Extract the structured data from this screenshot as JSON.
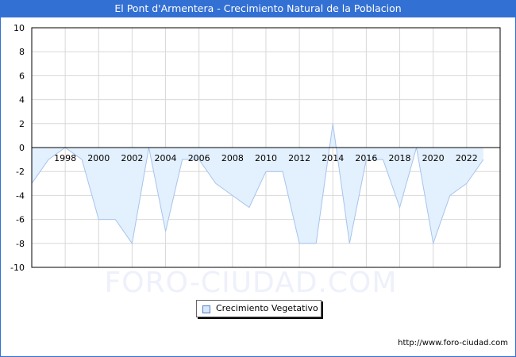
{
  "header": {
    "title": "El Pont d'Armentera - Crecimiento Natural de la Poblacion"
  },
  "legend": {
    "label": "Crecimiento Vegetativo"
  },
  "watermark": "FORO-CIUDAD.COM",
  "source": "http://www.foro-ciudad.com",
  "colors": {
    "title_bg": "#3370d4",
    "area_fill": "#e3f0fd",
    "line": "#a6c4ec",
    "grid": "#d8d8d8"
  },
  "chart_data": {
    "type": "area",
    "title": "El Pont d'Armentera - Crecimiento Natural de la Poblacion",
    "xlabel": "",
    "ylabel": "",
    "ylim": [
      -10,
      10
    ],
    "yticks": [
      10,
      8,
      6,
      4,
      2,
      0,
      -2,
      -4,
      -6,
      -8,
      -10
    ],
    "xtick_labels": [
      "1998",
      "2000",
      "2002",
      "2004",
      "2006",
      "2008",
      "2010",
      "2012",
      "2014",
      "2016",
      "2018",
      "2020",
      "2022"
    ],
    "grid": true,
    "legend_position": "bottom-center",
    "x": [
      1996,
      1997,
      1998,
      1999,
      2000,
      2001,
      2002,
      2003,
      2004,
      2005,
      2006,
      2007,
      2008,
      2009,
      2010,
      2011,
      2012,
      2013,
      2014,
      2015,
      2016,
      2017,
      2018,
      2019,
      2020,
      2021,
      2022,
      2023
    ],
    "series": [
      {
        "name": "Crecimiento Vegetativo",
        "values": [
          -3,
          -1,
          0,
          -1,
          -6,
          -6,
          -8,
          0,
          -7,
          -1,
          -1,
          -3,
          -4,
          -5,
          -2,
          -2,
          -8,
          -8,
          2,
          -8,
          -1,
          -1,
          -5,
          0,
          -8,
          -4,
          -3,
          -1
        ]
      }
    ]
  }
}
